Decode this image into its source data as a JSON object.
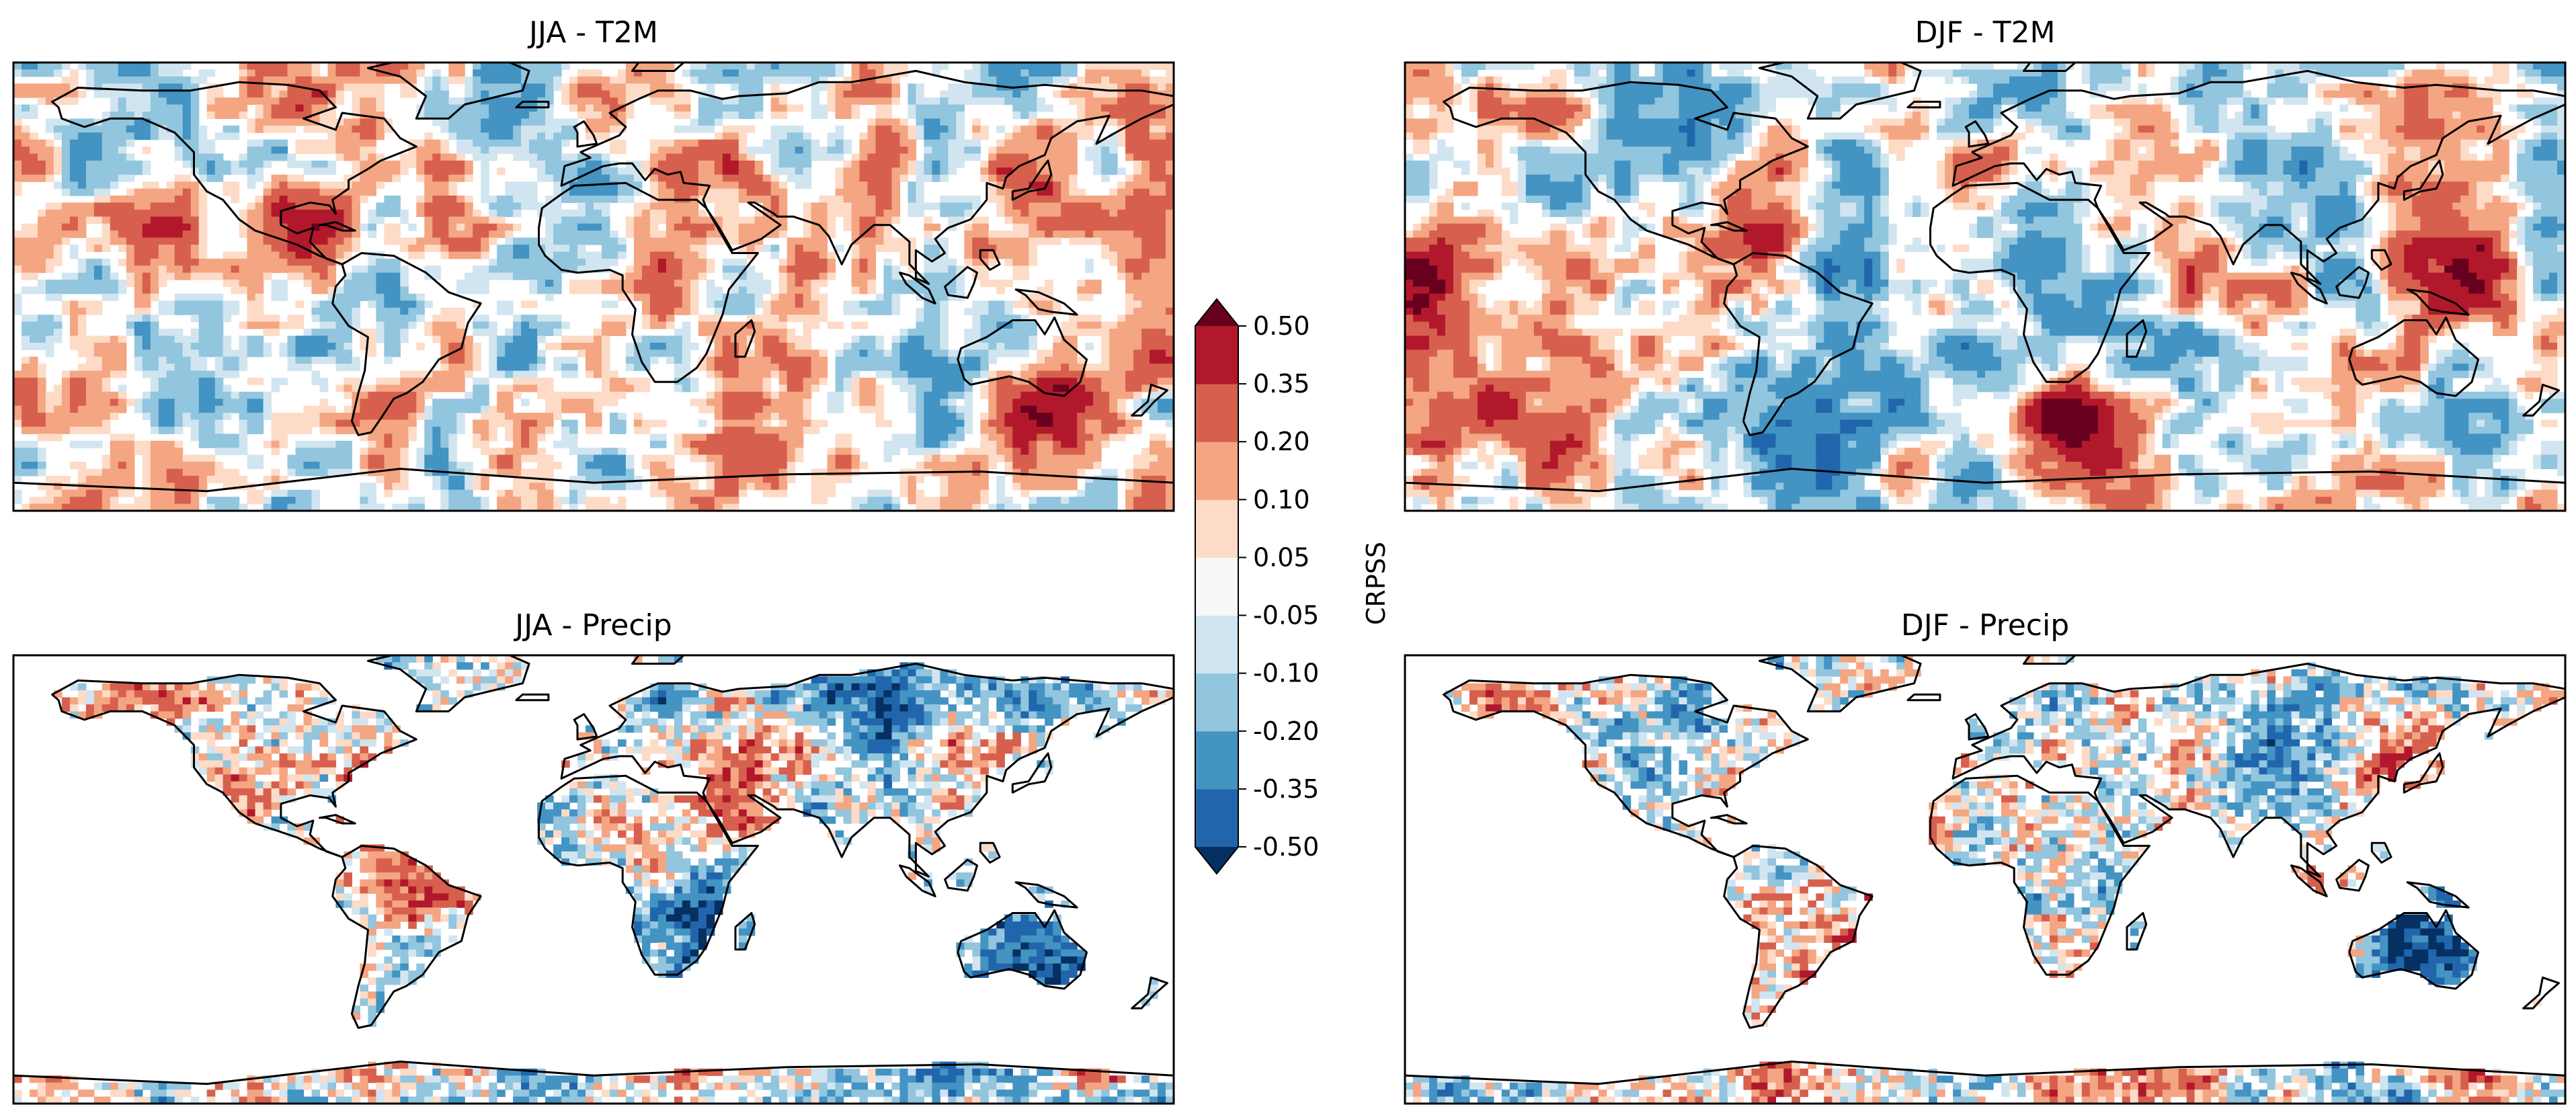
{
  "chart_data": {
    "type": "heatmap",
    "description_variable": "CRPSS",
    "panels": [
      {
        "id": "jja-t2m",
        "title": "JJA - T2M",
        "variable": "T2M",
        "season": "JJA",
        "coverage": "global",
        "hotspots": [
          {
            "lon": -90,
            "lat": 20,
            "value": 0.4
          },
          {
            "lon": -140,
            "lat": 25,
            "value": 0.25
          },
          {
            "lon": 135,
            "lat": 40,
            "value": 0.3
          },
          {
            "lon": 40,
            "lat": 30,
            "value": 0.2
          },
          {
            "lon": 15,
            "lat": -20,
            "value": 0.15
          },
          {
            "lon": 50,
            "lat": -45,
            "value": 0.3
          },
          {
            "lon": 140,
            "lat": -45,
            "value": 0.45
          },
          {
            "lon": 160,
            "lat": -25,
            "value": 0.25
          },
          {
            "lon": -160,
            "lat": -40,
            "value": 0.2
          },
          {
            "lon": 120,
            "lat": 10,
            "value": 0.3
          },
          {
            "lon": -30,
            "lat": 60,
            "value": -0.15
          },
          {
            "lon": 10,
            "lat": -60,
            "value": -0.15
          },
          {
            "lon": 100,
            "lat": -55,
            "value": -0.2
          }
        ]
      },
      {
        "id": "djf-t2m",
        "title": "DJF - T2M",
        "variable": "T2M",
        "season": "DJF",
        "coverage": "global",
        "hotspots": [
          {
            "lon": -175,
            "lat": 5,
            "value": 0.45
          },
          {
            "lon": -130,
            "lat": 10,
            "value": 0.35
          },
          {
            "lon": -75,
            "lat": 15,
            "value": 0.4
          },
          {
            "lon": 150,
            "lat": 5,
            "value": 0.45
          },
          {
            "lon": 30,
            "lat": -55,
            "value": 0.5
          },
          {
            "lon": -160,
            "lat": -50,
            "value": 0.3
          },
          {
            "lon": 115,
            "lat": -30,
            "value": 0.25
          },
          {
            "lon": 90,
            "lat": 60,
            "value": -0.25
          },
          {
            "lon": -40,
            "lat": 10,
            "value": -0.25
          },
          {
            "lon": 10,
            "lat": 15,
            "value": -0.15
          },
          {
            "lon": -140,
            "lat": 35,
            "value": -0.2
          },
          {
            "lon": -60,
            "lat": -50,
            "value": -0.2
          }
        ]
      },
      {
        "id": "jja-precip",
        "title": "JJA - Precip",
        "variable": "Precip",
        "season": "JJA",
        "coverage": "land",
        "hotspots": [
          {
            "lon": 10,
            "lat": 20,
            "value": 0.2
          },
          {
            "lon": 40,
            "lat": 25,
            "value": 0.15
          },
          {
            "lon": 30,
            "lat": -15,
            "value": -0.35
          },
          {
            "lon": 135,
            "lat": -25,
            "value": -0.3
          },
          {
            "lon": -60,
            "lat": -10,
            "value": 0.1
          },
          {
            "lon": 90,
            "lat": 60,
            "value": -0.2
          },
          {
            "lon": -100,
            "lat": 50,
            "value": -0.1
          }
        ]
      },
      {
        "id": "djf-precip",
        "title": "DJF - Precip",
        "variable": "Precip",
        "season": "DJF",
        "coverage": "land",
        "hotspots": [
          {
            "lon": -60,
            "lat": -10,
            "value": 0.15
          },
          {
            "lon": 135,
            "lat": -25,
            "value": -0.35
          },
          {
            "lon": 90,
            "lat": 50,
            "value": -0.25
          },
          {
            "lon": 20,
            "lat": -10,
            "value": -0.2
          },
          {
            "lon": 120,
            "lat": 35,
            "value": 0.2
          },
          {
            "lon": -100,
            "lat": 45,
            "value": -0.15
          }
        ]
      }
    ],
    "colorbar": {
      "label": "CRPSS",
      "ticks": [
        "-0.50",
        "-0.35",
        "-0.20",
        "-0.10",
        "-0.05",
        "0.05",
        "0.10",
        "0.20",
        "0.35",
        "0.50"
      ],
      "boundaries": [
        -0.5,
        -0.35,
        -0.2,
        -0.1,
        -0.05,
        0.05,
        0.1,
        0.2,
        0.35,
        0.5
      ],
      "colors": [
        "#2166ac",
        "#4393c3",
        "#92c5de",
        "#d1e5f0",
        "#f7f7f7",
        "#fddbc7",
        "#f4a582",
        "#d6604d",
        "#b2182b"
      ],
      "under_color": "#053061",
      "over_color": "#67001f",
      "extend": "both",
      "range": [
        -0.5,
        0.5
      ]
    }
  }
}
